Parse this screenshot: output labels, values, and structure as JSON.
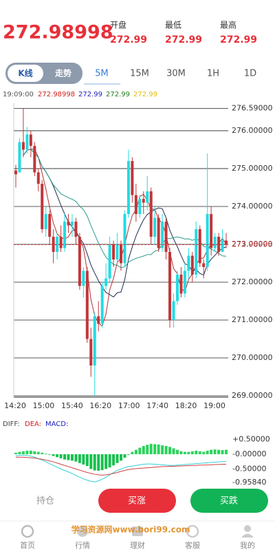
{
  "header": {
    "price": 272.98998,
    "stats": [
      {
        "label": "开盘",
        "value": 272.99
      },
      {
        "label": "最低",
        "value": 272.99
      },
      {
        "label": "最高",
        "value": 272.99
      }
    ]
  },
  "toggle": [
    "K线",
    "走势"
  ],
  "periods": [
    "5M",
    "15M",
    "30M",
    "1H",
    "1D"
  ],
  "info": {
    "time": "19:09:00",
    "values": [
      272.98998,
      272.99,
      272.99,
      272.99
    ]
  },
  "kline": {
    "yticks": [
      {
        "value": 276.59,
        "label": "276.59000"
      },
      {
        "value": 276,
        "label": "276.00000"
      },
      {
        "value": 275,
        "label": "275.00000"
      },
      {
        "value": 274,
        "label": "274.00000"
      },
      {
        "value": 273,
        "label": "273.00000"
      },
      {
        "value": 272,
        "label": "272.00000"
      },
      {
        "value": 271,
        "label": "271.00000"
      },
      {
        "value": 270,
        "label": "270.00000"
      },
      {
        "value": 269,
        "label": "269.00000"
      }
    ],
    "ylim": [
      269,
      276.59
    ],
    "current": 272.98998,
    "xlabels": [
      "14:20",
      "15:00",
      "15:40",
      "16:20",
      "17:00",
      "17:40",
      "18:20",
      "19:00"
    ],
    "candles": [
      {
        "open": 274.95,
        "high": 275.1,
        "low": 274.5,
        "close": 274.85
      },
      {
        "open": 274.9,
        "high": 275.8,
        "low": 274.9,
        "close": 275.7
      },
      {
        "open": 275.7,
        "high": 276.6,
        "low": 275.3,
        "close": 275.5
      },
      {
        "open": 275.5,
        "high": 276.1,
        "low": 275.4,
        "close": 275.9
      },
      {
        "open": 275.9,
        "high": 276.0,
        "low": 275.3,
        "close": 275.6
      },
      {
        "open": 275.6,
        "high": 275.7,
        "low": 274.8,
        "close": 274.9
      },
      {
        "open": 274.9,
        "high": 275.0,
        "low": 274.4,
        "close": 274.6
      },
      {
        "open": 274.6,
        "high": 274.7,
        "low": 273.3,
        "close": 273.4
      },
      {
        "open": 273.4,
        "high": 274.0,
        "low": 273.2,
        "close": 273.8
      },
      {
        "open": 273.8,
        "high": 273.9,
        "low": 273.0,
        "close": 273.2
      },
      {
        "open": 273.2,
        "high": 273.4,
        "low": 272.5,
        "close": 272.8
      },
      {
        "open": 272.8,
        "high": 273.3,
        "low": 272.6,
        "close": 273.2
      },
      {
        "open": 273.2,
        "high": 273.5,
        "low": 272.8,
        "close": 272.9
      },
      {
        "open": 272.9,
        "high": 273.8,
        "low": 272.8,
        "close": 273.6
      },
      {
        "open": 273.6,
        "high": 273.8,
        "low": 273.3,
        "close": 273.5
      },
      {
        "open": 273.5,
        "high": 273.8,
        "low": 273.2,
        "close": 273.6
      },
      {
        "open": 273.6,
        "high": 273.7,
        "low": 273.0,
        "close": 273.2
      },
      {
        "open": 273.2,
        "high": 273.3,
        "low": 271.8,
        "close": 271.9
      },
      {
        "open": 271.9,
        "high": 272.4,
        "low": 271.6,
        "close": 272.3
      },
      {
        "open": 272.3,
        "high": 272.4,
        "low": 270.4,
        "close": 270.5
      },
      {
        "open": 270.5,
        "high": 270.8,
        "low": 269.5,
        "close": 269.8
      },
      {
        "open": 269.8,
        "high": 271.2,
        "low": 269.0,
        "close": 271.1
      },
      {
        "open": 271.1,
        "high": 271.5,
        "low": 270.7,
        "close": 270.9
      },
      {
        "open": 270.9,
        "high": 272.0,
        "low": 270.8,
        "close": 271.9
      },
      {
        "open": 271.9,
        "high": 272.5,
        "low": 271.8,
        "close": 272.1
      },
      {
        "open": 272.1,
        "high": 273.2,
        "low": 272.0,
        "close": 273.0
      },
      {
        "open": 273.0,
        "high": 273.1,
        "low": 272.4,
        "close": 272.6
      },
      {
        "open": 272.6,
        "high": 273.3,
        "low": 272.5,
        "close": 273.0
      },
      {
        "open": 273.0,
        "high": 273.1,
        "low": 272.3,
        "close": 272.5
      },
      {
        "open": 272.5,
        "high": 273.9,
        "low": 272.4,
        "close": 273.8
      },
      {
        "open": 273.8,
        "high": 275.5,
        "low": 273.7,
        "close": 275.2
      },
      {
        "open": 275.2,
        "high": 275.3,
        "low": 274.1,
        "close": 274.3
      },
      {
        "open": 274.3,
        "high": 274.6,
        "low": 273.6,
        "close": 273.8
      },
      {
        "open": 273.8,
        "high": 274.3,
        "low": 273.7,
        "close": 274.2
      },
      {
        "open": 274.2,
        "high": 274.4,
        "low": 273.8,
        "close": 274.1
      },
      {
        "open": 274.1,
        "high": 274.8,
        "low": 273.9,
        "close": 274.4
      },
      {
        "open": 274.4,
        "high": 274.5,
        "low": 273.0,
        "close": 273.2
      },
      {
        "open": 273.2,
        "high": 274.0,
        "low": 273.0,
        "close": 273.7
      },
      {
        "open": 273.7,
        "high": 273.8,
        "low": 272.8,
        "close": 272.9
      },
      {
        "open": 272.9,
        "high": 273.8,
        "low": 272.8,
        "close": 273.6
      },
      {
        "open": 273.6,
        "high": 273.7,
        "low": 272.6,
        "close": 272.8
      },
      {
        "open": 272.8,
        "high": 272.9,
        "low": 270.8,
        "close": 271.0
      },
      {
        "open": 271.0,
        "high": 271.7,
        "low": 270.8,
        "close": 271.5
      },
      {
        "open": 271.5,
        "high": 272.3,
        "low": 271.4,
        "close": 272.2
      },
      {
        "open": 272.2,
        "high": 272.4,
        "low": 271.6,
        "close": 271.7
      },
      {
        "open": 271.7,
        "high": 272.5,
        "low": 271.6,
        "close": 272.3
      },
      {
        "open": 272.3,
        "high": 272.9,
        "low": 272.1,
        "close": 272.7
      },
      {
        "open": 272.7,
        "high": 272.8,
        "low": 272.0,
        "close": 272.2
      },
      {
        "open": 272.2,
        "high": 273.6,
        "low": 272.1,
        "close": 273.4
      },
      {
        "open": 273.4,
        "high": 273.5,
        "low": 272.4,
        "close": 272.5
      },
      {
        "open": 272.5,
        "high": 272.6,
        "low": 272.1,
        "close": 272.4
      },
      {
        "open": 272.4,
        "high": 275.4,
        "low": 272.3,
        "close": 273.8
      },
      {
        "open": 273.8,
        "high": 274.0,
        "low": 272.7,
        "close": 272.9
      },
      {
        "open": 272.9,
        "high": 273.3,
        "low": 272.8,
        "close": 273.2
      },
      {
        "open": 273.2,
        "high": 273.3,
        "low": 272.7,
        "close": 272.8
      },
      {
        "open": 272.8,
        "high": 273.4,
        "low": 272.8,
        "close": 273.1
      },
      {
        "open": 273.1,
        "high": 273.3,
        "low": 272.9,
        "close": 272.99
      }
    ]
  },
  "macd": {
    "legend": [
      "DIFF:",
      "DEA:",
      "MACD:"
    ],
    "yticks": [
      {
        "value": 0.5,
        "label": "+0.50000"
      },
      {
        "value": 0,
        "label": "-0.00000"
      },
      {
        "value": -0.5,
        "label": "-0.50000"
      },
      {
        "value": -0.9584,
        "label": "-0.95840"
      }
    ],
    "bars": [
      0.05,
      0.08,
      0.1,
      0.12,
      0.12,
      0.1,
      0.08,
      0.05,
      0.02,
      -0.02,
      -0.06,
      -0.1,
      -0.14,
      -0.18,
      -0.2,
      -0.22,
      -0.25,
      -0.3,
      -0.35,
      -0.4,
      -0.5,
      -0.55,
      -0.56,
      -0.54,
      -0.5,
      -0.45,
      -0.38,
      -0.3,
      -0.22,
      -0.12,
      -0.02,
      0.08,
      0.15,
      0.22,
      0.28,
      0.32,
      0.35,
      0.34,
      0.33,
      0.3,
      0.28,
      0.25,
      0.2,
      0.15,
      0.1,
      0.08,
      0.08,
      0.1,
      0.12,
      0.1,
      0.08,
      0.12,
      0.15,
      0.16,
      0.15,
      0.14,
      0.15
    ],
    "diff": [
      -0.05,
      -0.04,
      -0.03,
      -0.04,
      -0.06,
      -0.1,
      -0.15,
      -0.2,
      -0.26,
      -0.32,
      -0.38,
      -0.44,
      -0.5,
      -0.55,
      -0.6,
      -0.66,
      -0.72,
      -0.78,
      -0.84,
      -0.88,
      -0.92,
      -0.94,
      -0.9,
      -0.85,
      -0.78,
      -0.7,
      -0.62,
      -0.55,
      -0.5,
      -0.45,
      -0.42,
      -0.4,
      -0.38,
      -0.36,
      -0.34,
      -0.33,
      -0.33,
      -0.34,
      -0.35,
      -0.36,
      -0.37,
      -0.38,
      -0.38,
      -0.37,
      -0.36,
      -0.35,
      -0.34,
      -0.33,
      -0.32,
      -0.31,
      -0.3,
      -0.29,
      -0.28,
      -0.27,
      -0.26,
      -0.25,
      -0.25
    ],
    "dea": [
      -0.1,
      -0.1,
      -0.1,
      -0.11,
      -0.12,
      -0.13,
      -0.15,
      -0.17,
      -0.2,
      -0.23,
      -0.26,
      -0.3,
      -0.34,
      -0.38,
      -0.42,
      -0.46,
      -0.5,
      -0.54,
      -0.58,
      -0.62,
      -0.65,
      -0.68,
      -0.7,
      -0.71,
      -0.7,
      -0.68,
      -0.65,
      -0.62,
      -0.58,
      -0.55,
      -0.52,
      -0.5,
      -0.49,
      -0.48,
      -0.47,
      -0.46,
      -0.45,
      -0.44,
      -0.43,
      -0.42,
      -0.42,
      -0.41,
      -0.41,
      -0.4,
      -0.4,
      -0.39,
      -0.39,
      -0.38,
      -0.38,
      -0.37,
      -0.37,
      -0.36,
      -0.36,
      -0.35,
      -0.35,
      -0.34,
      -0.34
    ]
  },
  "actions": {
    "position": "持仓",
    "buy_up": "买涨",
    "buy_down": "买跌"
  },
  "nav": [
    "首页",
    "行情",
    "理财",
    "客服",
    "我的"
  ],
  "watermark": "学习资源网www.bori99.com"
}
